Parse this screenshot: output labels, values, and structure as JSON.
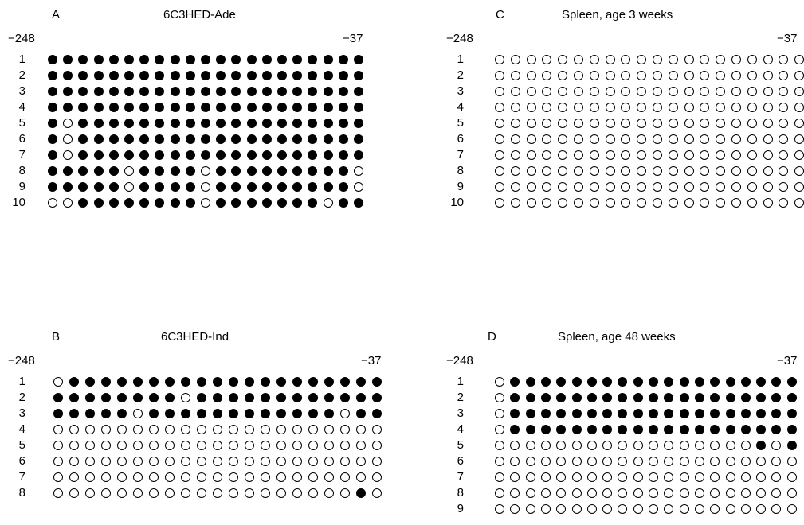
{
  "panels": [
    {
      "letter": "A",
      "title": "6C3HED-Ade",
      "left_label": "−248",
      "right_label": "−37",
      "rows": [
        {
          "n": "1",
          "sites": "111111111111111111111"
        },
        {
          "n": "2",
          "sites": "111111111111111111111"
        },
        {
          "n": "3",
          "sites": "111111111111111111111"
        },
        {
          "n": "4",
          "sites": "111111111111111111111"
        },
        {
          "n": "5",
          "sites": "101111111111111111111"
        },
        {
          "n": "6",
          "sites": "101111111111111111111"
        },
        {
          "n": "7",
          "sites": "101111111111111111111"
        },
        {
          "n": "8",
          "sites": "111110111101111111110"
        },
        {
          "n": "9",
          "sites": "111110111101111111110"
        },
        {
          "n": "10",
          "sites": "001111111101111111011"
        }
      ]
    },
    {
      "letter": "C",
      "title": "Spleen, age 3 weeks",
      "left_label": "−248",
      "right_label": "−37",
      "rows": [
        {
          "n": "1",
          "sites": "00000000000000000000"
        },
        {
          "n": "2",
          "sites": "00000000000000000000"
        },
        {
          "n": "3",
          "sites": "00000000000000000000"
        },
        {
          "n": "4",
          "sites": "00000000000000000000"
        },
        {
          "n": "5",
          "sites": "00000000000000000000"
        },
        {
          "n": "6",
          "sites": "00000000000000000000"
        },
        {
          "n": "7",
          "sites": "00000000000000000000"
        },
        {
          "n": "8",
          "sites": "00000000000000000000"
        },
        {
          "n": "9",
          "sites": "00000000000000000000"
        },
        {
          "n": "10",
          "sites": "00000000000000000000"
        }
      ]
    },
    {
      "letter": "B",
      "title": "6C3HED-Ind",
      "left_label": "−248",
      "right_label": "−37",
      "rows": [
        {
          "n": "1",
          "sites": "011111111111111111111"
        },
        {
          "n": "2",
          "sites": "111111110111111111111"
        },
        {
          "n": "3",
          "sites": "111110111111111111011"
        },
        {
          "n": "4",
          "sites": "000000000000000000000"
        },
        {
          "n": "5",
          "sites": "000000000000000000000"
        },
        {
          "n": "6",
          "sites": "000000000000000000000"
        },
        {
          "n": "7",
          "sites": "000000000000000000000"
        },
        {
          "n": "8",
          "sites": "000000000000000000010"
        }
      ]
    },
    {
      "letter": "D",
      "title": "Spleen, age 48 weeks",
      "left_label": "−248",
      "right_label": "−37",
      "rows": [
        {
          "n": "1",
          "sites": "01111111111111111111"
        },
        {
          "n": "2",
          "sites": "01111111111111111111"
        },
        {
          "n": "3",
          "sites": "01111111111111111111"
        },
        {
          "n": "4",
          "sites": "01111111111111111111"
        },
        {
          "n": "5",
          "sites": "00000000000000000101"
        },
        {
          "n": "6",
          "sites": "00000000000000000000"
        },
        {
          "n": "7",
          "sites": "00000000000000000000"
        },
        {
          "n": "8",
          "sites": "00000000000000000000"
        },
        {
          "n": "9",
          "sites": "00000000000000000000"
        }
      ]
    }
  ]
}
